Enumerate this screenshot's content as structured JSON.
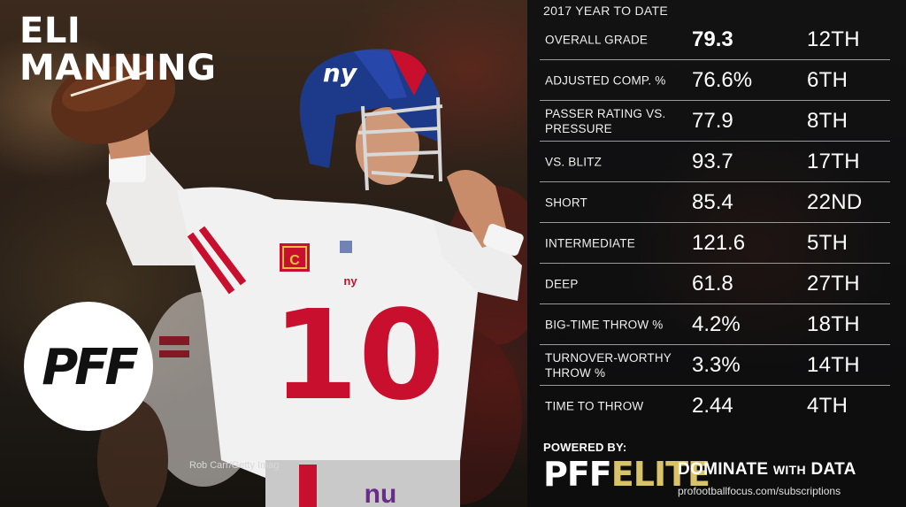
{
  "player": {
    "first_name": "ELI",
    "last_name": "MANNING",
    "jersey_number": "10",
    "team_logo_text": "ny"
  },
  "photo_credit": "Rob Carr/Getty Imag",
  "brand": {
    "logo_text": "PFF"
  },
  "panel": {
    "title": "2017 YEAR TO DATE",
    "rows": [
      {
        "label": "OVERALL GRADE",
        "value": "79.3",
        "rank": "12TH"
      },
      {
        "label": "ADJUSTED COMP. %",
        "value": "76.6%",
        "rank": "6TH"
      },
      {
        "label": "PASSER RATING VS. PRESSURE",
        "value": "77.9",
        "rank": "8TH"
      },
      {
        "label": "VS. BLITZ",
        "value": "93.7",
        "rank": "17TH"
      },
      {
        "label": "SHORT",
        "value": "85.4",
        "rank": "22ND"
      },
      {
        "label": "INTERMEDIATE",
        "value": "121.6",
        "rank": "5TH"
      },
      {
        "label": "DEEP",
        "value": "61.8",
        "rank": "27TH"
      },
      {
        "label": "BIG-TIME THROW %",
        "value": "4.2%",
        "rank": "18TH"
      },
      {
        "label": "TURNOVER-WORTHY THROW %",
        "value": "3.3%",
        "rank": "14TH"
      },
      {
        "label": "TIME TO THROW",
        "value": "2.44",
        "rank": "4TH"
      }
    ]
  },
  "footer": {
    "powered_by": "POWERED BY:",
    "pff": "PFF",
    "elite": "ELITE",
    "tagline_a": "DOMINATE",
    "tagline_b": "WITH",
    "tagline_c": "DATA",
    "url": "profootballfocus.com/subscriptions"
  },
  "colors": {
    "giants_blue": "#1d3a8a",
    "giants_red": "#c8102e",
    "elite_gold": "#d9c36a",
    "panel_bg": "#0d0d0e"
  }
}
